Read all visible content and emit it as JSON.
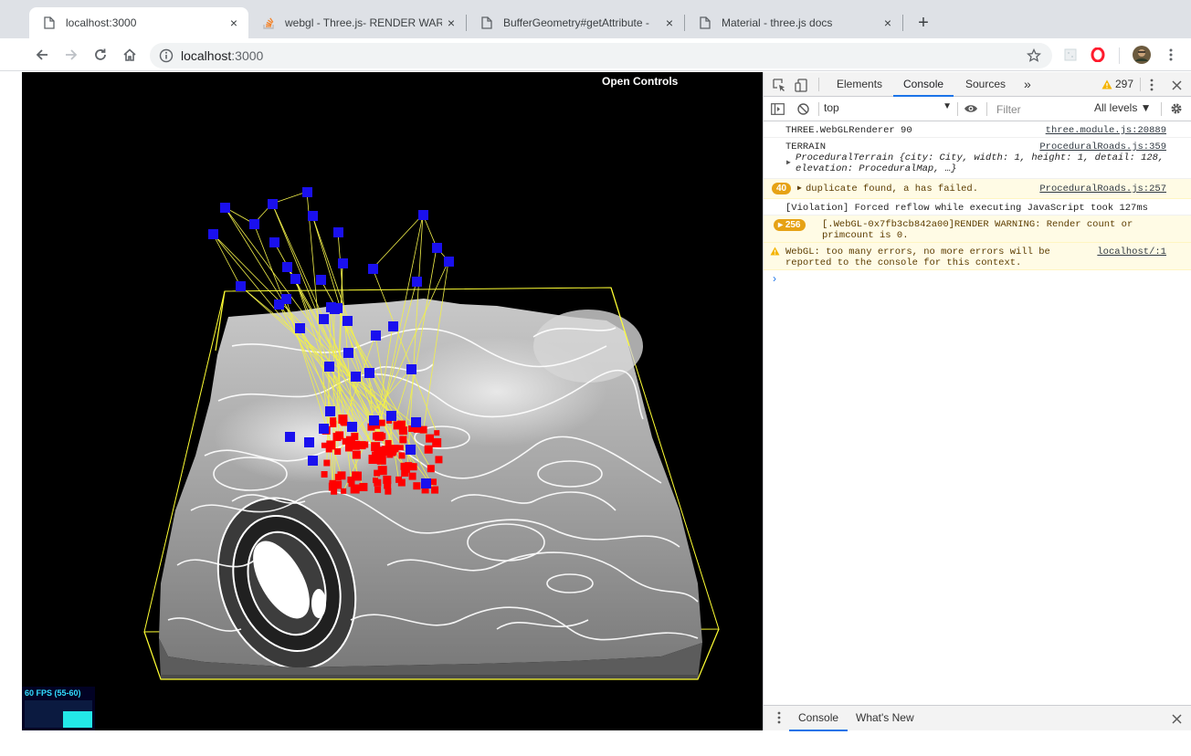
{
  "browser": {
    "tabs": [
      {
        "title": "localhost:3000",
        "icon": "page-icon",
        "active": true
      },
      {
        "title": "webgl - Three.js- RENDER WAR",
        "icon": "stackoverflow-icon",
        "active": false
      },
      {
        "title": "BufferGeometry#getAttribute -",
        "icon": "page-icon",
        "active": false
      },
      {
        "title": "Material - three.js docs",
        "icon": "page-icon",
        "active": false
      }
    ],
    "close_glyph": "×",
    "new_tab_glyph": "+",
    "url_host": "localhost",
    "url_port": ":3000"
  },
  "viewport": {
    "open_controls": "Open Controls",
    "fps_label": "60 FPS (55-60)",
    "fps_level": 0.6,
    "colors": {
      "wire": "#ffff33",
      "top_nodes": "#1a10ee",
      "bottom_nodes": "#ff0000",
      "edges": "#f2f04a"
    }
  },
  "devtools": {
    "tabs": [
      "Elements",
      "Console",
      "Sources"
    ],
    "active_tab": "Console",
    "more_glyph": "»",
    "warning_count": "297",
    "context": "top",
    "filter_placeholder": "Filter",
    "levels": "All levels ▼",
    "messages": [
      {
        "text": "THREE.WebGLRenderer 90",
        "source": "three.module.js:20889"
      },
      {
        "title": "TERRAIN",
        "source": "ProceduralRoads.js:359",
        "object_prefix": "ProceduralTerrain",
        "object_body": "{city: City, width: 1, height: 1, detail: 128, elevation: ProceduralMap, …}"
      },
      {
        "badge": "40",
        "text": "duplicate found, a has failed.",
        "source": "ProceduralRoads.js:257"
      },
      {
        "text": "[Violation] Forced reflow while executing JavaScript took 127ms"
      },
      {
        "badge": "256",
        "text": "[.WebGL-0x7fb3cb842a00]RENDER WARNING: Render count or primcount is 0."
      },
      {
        "text": "WebGL: too many errors, no more errors will be reported to the console for this context.",
        "source": "localhost/:1"
      }
    ],
    "prompt": "›",
    "drawer_tabs": [
      "Console",
      "What's New"
    ]
  }
}
